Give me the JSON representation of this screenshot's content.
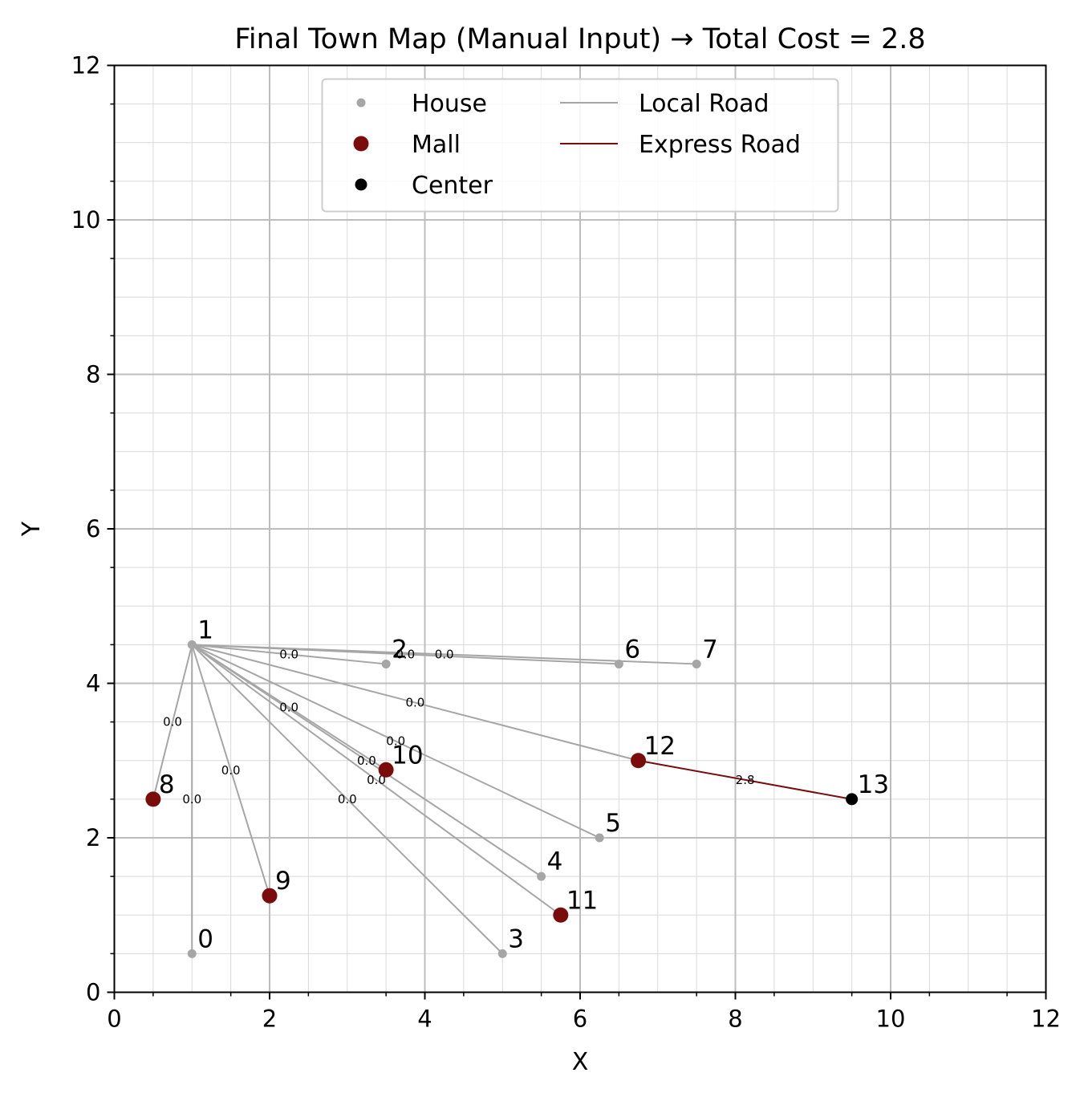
{
  "chart_data": {
    "type": "scatter",
    "title": "Final Town Map (Manual Input) → Total Cost = 2.8",
    "xlabel": "X",
    "ylabel": "Y",
    "xlim": [
      0,
      12
    ],
    "ylim": [
      0,
      12
    ],
    "x_ticks": [
      "0",
      "2",
      "4",
      "6",
      "8",
      "10",
      "12"
    ],
    "y_ticks": [
      "0",
      "2",
      "4",
      "6",
      "8",
      "10",
      "12"
    ],
    "grid": true,
    "minor_grid": true,
    "legend_position": "upper center",
    "legend": [
      {
        "label": "House",
        "kind": "house"
      },
      {
        "label": "Mall",
        "kind": "mall"
      },
      {
        "label": "Center",
        "kind": "center"
      },
      {
        "label": "Local Road",
        "kind": "local"
      },
      {
        "label": "Express Road",
        "kind": "express"
      }
    ],
    "colors": {
      "house": "#a6a6a6",
      "mall": "#7b0c0c",
      "center": "#000000",
      "local": "#a6a6a6",
      "express": "#7b0c0c"
    },
    "nodes": [
      {
        "id": "0",
        "x": 1.0,
        "y": 0.5,
        "kind": "house"
      },
      {
        "id": "1",
        "x": 1.0,
        "y": 4.5,
        "kind": "house"
      },
      {
        "id": "2",
        "x": 3.5,
        "y": 4.25,
        "kind": "house"
      },
      {
        "id": "3",
        "x": 5.0,
        "y": 0.5,
        "kind": "house"
      },
      {
        "id": "4",
        "x": 5.5,
        "y": 1.5,
        "kind": "house"
      },
      {
        "id": "5",
        "x": 6.25,
        "y": 2.0,
        "kind": "house"
      },
      {
        "id": "6",
        "x": 6.5,
        "y": 4.25,
        "kind": "house"
      },
      {
        "id": "7",
        "x": 7.5,
        "y": 4.25,
        "kind": "house"
      },
      {
        "id": "8",
        "x": 0.5,
        "y": 2.5,
        "kind": "mall"
      },
      {
        "id": "9",
        "x": 2.0,
        "y": 1.25,
        "kind": "mall"
      },
      {
        "id": "10",
        "x": 3.5,
        "y": 2.88,
        "kind": "mall"
      },
      {
        "id": "11",
        "x": 5.75,
        "y": 1.0,
        "kind": "mall"
      },
      {
        "id": "12",
        "x": 6.75,
        "y": 3.0,
        "kind": "mall"
      },
      {
        "id": "13",
        "x": 9.5,
        "y": 2.5,
        "kind": "center"
      }
    ],
    "edges": [
      {
        "from": "1",
        "to": "0",
        "type": "local",
        "label": "0.0"
      },
      {
        "from": "1",
        "to": "8",
        "type": "local",
        "label": "0.0"
      },
      {
        "from": "1",
        "to": "9",
        "type": "local",
        "label": "0.0"
      },
      {
        "from": "1",
        "to": "2",
        "type": "local",
        "label": "0.0"
      },
      {
        "from": "1",
        "to": "6",
        "type": "local",
        "label": "0.0"
      },
      {
        "from": "1",
        "to": "7",
        "type": "local",
        "label": "0.0"
      },
      {
        "from": "1",
        "to": "10",
        "type": "local",
        "label": "0.0"
      },
      {
        "from": "1",
        "to": "12",
        "type": "local",
        "label": "0.0"
      },
      {
        "from": "1",
        "to": "5",
        "type": "local",
        "label": "0.0"
      },
      {
        "from": "1",
        "to": "4",
        "type": "local",
        "label": "0.0"
      },
      {
        "from": "1",
        "to": "11",
        "type": "local",
        "label": "0.0"
      },
      {
        "from": "1",
        "to": "3",
        "type": "local",
        "label": "0.0"
      },
      {
        "from": "12",
        "to": "13",
        "type": "express",
        "label": "2.8"
      }
    ]
  }
}
